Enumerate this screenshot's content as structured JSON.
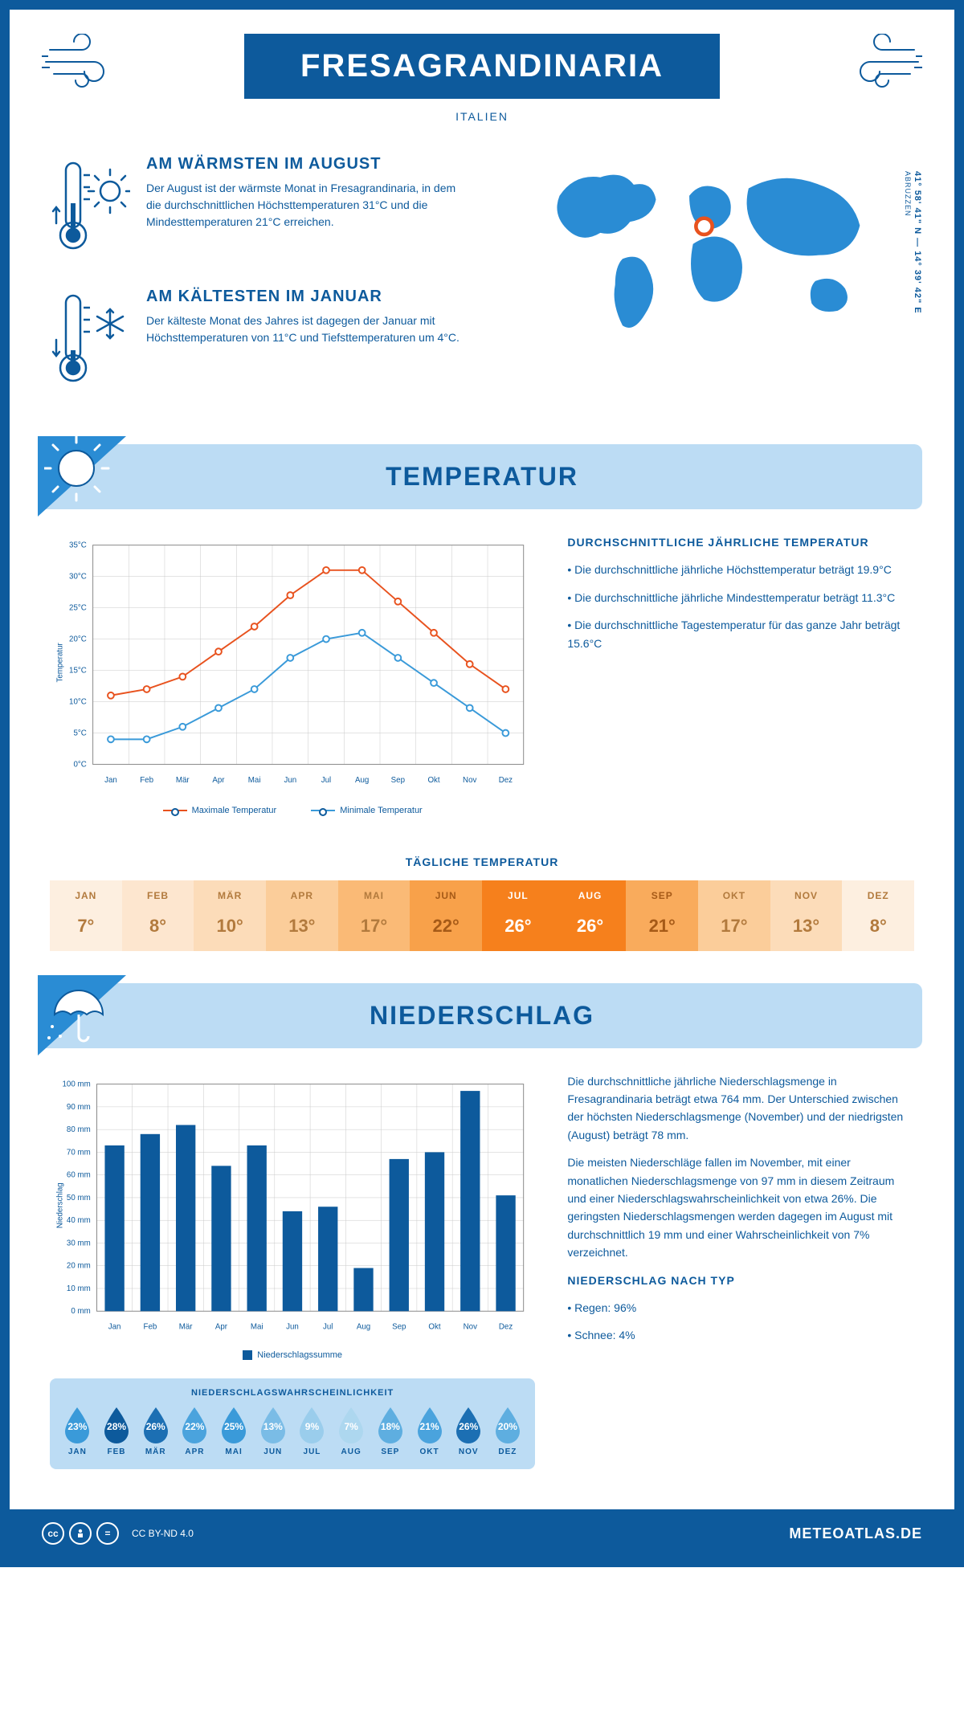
{
  "header": {
    "title": "FRESAGRANDINARIA",
    "subtitle": "ITALIEN"
  },
  "coords": {
    "lat": "41° 58' 41\" N",
    "sep": "—",
    "lon": "14° 39' 42\" E",
    "region": "ABRUZZEN"
  },
  "map_marker": {
    "cx_pct": 50,
    "cy_pct": 37
  },
  "facts": {
    "warm": {
      "title": "AM WÄRMSTEN IM AUGUST",
      "body": "Der August ist der wärmste Monat in Fresagrandinaria, in dem die durchschnittlichen Höchsttemperaturen 31°C und die Mindesttemperaturen 21°C erreichen."
    },
    "cold": {
      "title": "AM KÄLTESTEN IM JANUAR",
      "body": "Der kälteste Monat des Jahres ist dagegen der Januar mit Höchsttemperaturen von 11°C und Tiefsttemperaturen um 4°C."
    }
  },
  "temperature_section": {
    "heading": "TEMPERATUR",
    "chart": {
      "type": "line",
      "months": [
        "Jan",
        "Feb",
        "Mär",
        "Apr",
        "Mai",
        "Jun",
        "Jul",
        "Aug",
        "Sep",
        "Okt",
        "Nov",
        "Dez"
      ],
      "max_series": [
        11,
        12,
        14,
        18,
        22,
        27,
        31,
        31,
        26,
        21,
        16,
        12
      ],
      "min_series": [
        4,
        4,
        6,
        9,
        12,
        17,
        20,
        21,
        17,
        13,
        9,
        5
      ],
      "max_color": "#e8521e",
      "min_color": "#3a9ad9",
      "y_min": 0,
      "y_max": 35,
      "y_step": 5,
      "y_unit": "°C",
      "y_label": "Temperatur",
      "legend_max": "Maximale Temperatur",
      "legend_min": "Minimale Temperatur",
      "grid_color": "#c9c9c9",
      "background": "#ffffff"
    },
    "summary": {
      "title": "DURCHSCHNITTLICHE JÄHRLICHE TEMPERATUR",
      "bullets": [
        "Die durchschnittliche jährliche Höchsttemperatur beträgt 19.9°C",
        "Die durchschnittliche jährliche Mindesttemperatur beträgt 11.3°C",
        "Die durchschnittliche Tagestemperatur für das ganze Jahr beträgt 15.6°C"
      ]
    },
    "daily": {
      "title": "TÄGLICHE TEMPERATUR",
      "months": [
        "JAN",
        "FEB",
        "MÄR",
        "APR",
        "MAI",
        "JUN",
        "JUL",
        "AUG",
        "SEP",
        "OKT",
        "NOV",
        "DEZ"
      ],
      "values": [
        "7°",
        "8°",
        "10°",
        "13°",
        "17°",
        "22°",
        "26°",
        "26°",
        "21°",
        "17°",
        "13°",
        "8°"
      ],
      "colors": [
        "#fdefe0",
        "#fde6cf",
        "#fcdcb9",
        "#fbcd9a",
        "#faba76",
        "#f8a14a",
        "#f6801c",
        "#f6801c",
        "#f9ab5c",
        "#fbcd9a",
        "#fcdcb9",
        "#fdefe0"
      ],
      "text_colors": [
        "#b27a3d",
        "#b27a3d",
        "#b27a3d",
        "#b27a3d",
        "#b27a3d",
        "#a65a17",
        "#ffffff",
        "#ffffff",
        "#a65a17",
        "#b27a3d",
        "#b27a3d",
        "#b27a3d"
      ]
    }
  },
  "precip_section": {
    "heading": "NIEDERSCHLAG",
    "chart": {
      "type": "bar",
      "months": [
        "Jan",
        "Feb",
        "Mär",
        "Apr",
        "Mai",
        "Jun",
        "Jul",
        "Aug",
        "Sep",
        "Okt",
        "Nov",
        "Dez"
      ],
      "values": [
        73,
        78,
        82,
        64,
        73,
        44,
        46,
        19,
        67,
        70,
        97,
        51
      ],
      "bar_color": "#0d5a9c",
      "y_min": 0,
      "y_max": 100,
      "y_step": 10,
      "y_unit": " mm",
      "y_label": "Niederschlag",
      "legend": "Niederschlagssumme",
      "grid_color": "#c9c9c9"
    },
    "text": {
      "p1": "Die durchschnittliche jährliche Niederschlagsmenge in Fresagrandinaria beträgt etwa 764 mm. Der Unterschied zwischen der höchsten Niederschlagsmenge (November) und der niedrigsten (August) beträgt 78 mm.",
      "p2": "Die meisten Niederschläge fallen im November, mit einer monatlichen Niederschlagsmenge von 97 mm in diesem Zeitraum und einer Niederschlagswahrscheinlichkeit von etwa 26%. Die geringsten Niederschlagsmengen werden dagegen im August mit durchschnittlich 19 mm und einer Wahrscheinlichkeit von 7% verzeichnet.",
      "type_title": "NIEDERSCHLAG NACH TYP",
      "type_bullets": [
        "Regen: 96%",
        "Schnee: 4%"
      ]
    },
    "probability": {
      "title": "NIEDERSCHLAGSWAHRSCHEINLICHKEIT",
      "months": [
        "JAN",
        "FEB",
        "MÄR",
        "APR",
        "MAI",
        "JUN",
        "JUL",
        "AUG",
        "SEP",
        "OKT",
        "NOV",
        "DEZ"
      ],
      "values": [
        "23%",
        "28%",
        "26%",
        "22%",
        "25%",
        "13%",
        "9%",
        "7%",
        "18%",
        "21%",
        "26%",
        "20%"
      ],
      "colors": [
        "#3a9ad9",
        "#0d5a9c",
        "#1c6fb3",
        "#4aa3dd",
        "#3a9ad9",
        "#7abce6",
        "#9acdec",
        "#add7ef",
        "#5eaee0",
        "#4aa3dd",
        "#1c6fb3",
        "#5eaee0"
      ]
    }
  },
  "footer": {
    "license": "CC BY-ND 4.0",
    "site": "METEOATLAS.DE"
  }
}
